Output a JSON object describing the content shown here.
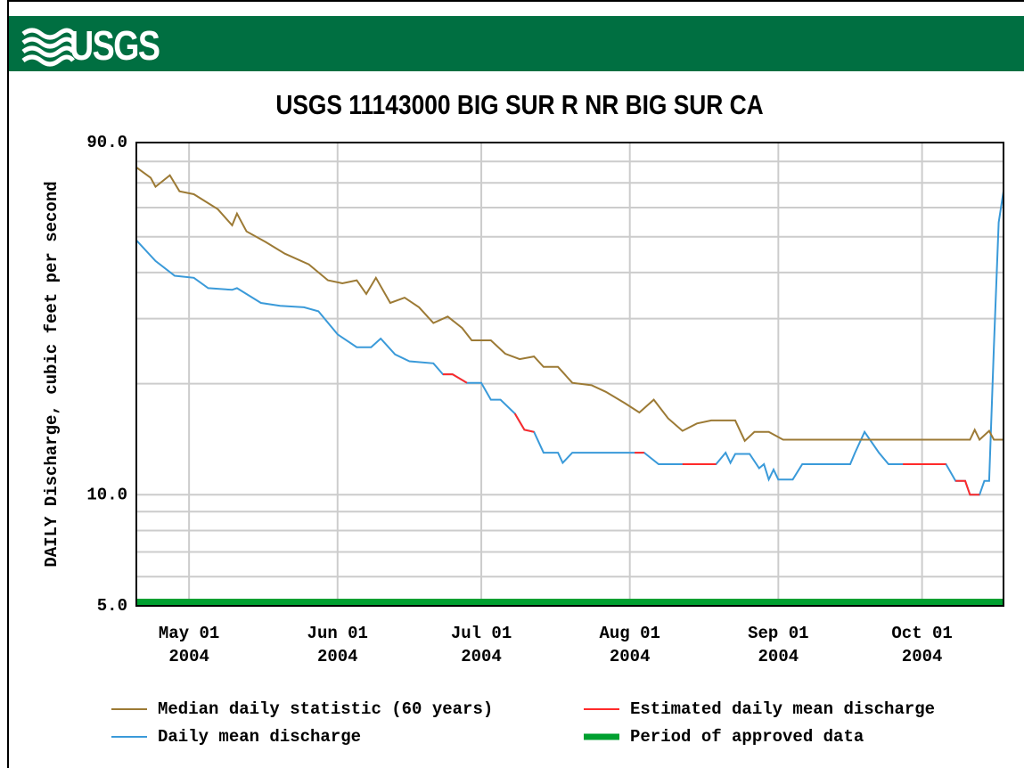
{
  "header": {
    "logo": "USGS"
  },
  "chart_data": {
    "type": "line",
    "title": "USGS 11143000 BIG SUR R NR BIG SUR CA",
    "y_label": "DAILY Discharge, cubic feet per second",
    "log_scale": true,
    "grid": true,
    "ylim": [
      5,
      90
    ],
    "yticks": [
      {
        "value": 5,
        "label": "5.0"
      },
      {
        "value": 10,
        "label": "10.0"
      },
      {
        "value": 90,
        "label": "90.0"
      }
    ],
    "minor_yticks": [
      6,
      7,
      8,
      9,
      20,
      30,
      40,
      50,
      60,
      70,
      80
    ],
    "xlim": [
      "2004-04-20",
      "2004-10-18"
    ],
    "xticks": [
      {
        "value": "2004-05-01",
        "label": "May 01\n2004"
      },
      {
        "value": "2004-06-01",
        "label": "Jun 01\n2004"
      },
      {
        "value": "2004-07-01",
        "label": "Jul 01\n2004"
      },
      {
        "value": "2004-08-01",
        "label": "Aug 01\n2004"
      },
      {
        "value": "2004-09-01",
        "label": "Sep 01\n2004"
      },
      {
        "value": "2004-10-01",
        "label": "Oct 01\n2004"
      }
    ],
    "series": [
      {
        "name": "Median daily statistic (60 years)",
        "color": "#9c7a35",
        "x": [
          "2004-04-20",
          "2004-04-23",
          "2004-04-24",
          "2004-04-27",
          "2004-04-29",
          "2004-05-02",
          "2004-05-07",
          "2004-05-10",
          "2004-05-11",
          "2004-05-13",
          "2004-05-17",
          "2004-05-21",
          "2004-05-26",
          "2004-05-30",
          "2004-06-02",
          "2004-06-05",
          "2004-06-07",
          "2004-06-09",
          "2004-06-12",
          "2004-06-15",
          "2004-06-18",
          "2004-06-21",
          "2004-06-24",
          "2004-06-27",
          "2004-06-29",
          "2004-07-03",
          "2004-07-06",
          "2004-07-09",
          "2004-07-12",
          "2004-07-14",
          "2004-07-17",
          "2004-07-20",
          "2004-07-24",
          "2004-07-27",
          "2004-07-31",
          "2004-08-03",
          "2004-08-06",
          "2004-08-09",
          "2004-08-12",
          "2004-08-15",
          "2004-08-18",
          "2004-08-23",
          "2004-08-25",
          "2004-08-27",
          "2004-08-30",
          "2004-09-02",
          "2004-10-11",
          "2004-10-12",
          "2004-10-13",
          "2004-10-15",
          "2004-10-16",
          "2004-10-18"
        ],
        "values": [
          77.1,
          72.2,
          68.3,
          73.4,
          66.4,
          65.2,
          59.4,
          53.7,
          57.8,
          51.7,
          48.4,
          45.0,
          42.1,
          38.1,
          37.4,
          38.1,
          35.0,
          38.7,
          33.1,
          34.2,
          32.2,
          29.2,
          30.4,
          28.3,
          26.2,
          26.2,
          24.1,
          23.3,
          23.7,
          22.2,
          22.2,
          20.1,
          19.8,
          19.0,
          17.7,
          16.7,
          18.1,
          16.1,
          14.9,
          15.6,
          15.9,
          15.9,
          14.0,
          14.8,
          14.8,
          14.1,
          14.1,
          15.0,
          14.1,
          14.9,
          14.1,
          14.1
        ]
      },
      {
        "name": "Estimated daily mean discharge",
        "color": "#ff2a2a",
        "x": [
          "2004-06-23",
          "2004-06-25",
          "2004-06-28",
          "2004-07-01",
          "2004-07-08",
          "2004-07-10",
          "2004-07-12",
          "2004-07-20",
          "2004-08-02",
          "2004-08-04",
          "2004-08-07",
          "2004-08-12",
          "2004-08-19",
          "2004-09-01",
          "2004-09-27",
          "2004-10-06",
          "2004-10-07",
          "2004-10-08",
          "2004-10-10",
          "2004-10-11",
          "2004-10-13"
        ],
        "values": [
          21.2,
          21.2,
          20.1,
          null,
          16.6,
          15.0,
          14.8,
          null,
          13.0,
          13.0,
          null,
          12.1,
          12.1,
          null,
          12.1,
          12.1,
          null,
          10.9,
          10.9,
          10.0,
          10.0
        ]
      },
      {
        "name": "Daily mean discharge",
        "color": "#3a9ad9",
        "x": [
          "2004-04-20",
          "2004-04-24",
          "2004-04-28",
          "2004-05-02",
          "2004-05-05",
          "2004-05-10",
          "2004-05-11",
          "2004-05-16",
          "2004-05-20",
          "2004-05-25",
          "2004-05-28",
          "2004-06-01",
          "2004-06-05",
          "2004-06-08",
          "2004-06-10",
          "2004-06-13",
          "2004-06-16",
          "2004-06-21",
          "2004-06-23",
          "2004-06-25",
          "2004-06-28",
          "2004-07-01",
          "2004-07-03",
          "2004-07-05",
          "2004-07-08",
          "2004-07-10",
          "2004-07-12",
          "2004-07-14",
          "2004-07-17",
          "2004-07-18",
          "2004-07-20",
          "2004-08-04",
          "2004-08-07",
          "2004-08-19",
          "2004-08-21",
          "2004-08-22",
          "2004-08-23",
          "2004-08-26",
          "2004-08-28",
          "2004-08-29",
          "2004-08-30",
          "2004-08-31",
          "2004-09-01",
          "2004-09-04",
          "2004-09-06",
          "2004-09-16",
          "2004-09-17",
          "2004-09-19",
          "2004-09-22",
          "2004-09-24",
          "2004-10-06",
          "2004-10-08",
          "2004-10-10",
          "2004-10-11",
          "2004-10-13",
          "2004-10-14",
          "2004-10-15",
          "2004-10-16",
          "2004-10-17",
          "2004-10-18"
        ],
        "values": [
          48.9,
          43.0,
          39.2,
          38.7,
          36.3,
          35.9,
          36.3,
          33.1,
          32.5,
          32.2,
          31.4,
          27.2,
          25.1,
          25.1,
          26.5,
          24.0,
          23.0,
          22.7,
          21.2,
          21.2,
          20.1,
          20.1,
          18.1,
          18.1,
          16.6,
          15.0,
          14.8,
          13.0,
          13.0,
          12.2,
          13.0,
          13.0,
          12.1,
          12.1,
          13.0,
          12.2,
          12.9,
          12.9,
          11.8,
          12.1,
          11.0,
          11.7,
          11.0,
          11.0,
          12.1,
          12.1,
          13.0,
          14.8,
          13.0,
          12.1,
          12.1,
          10.9,
          10.9,
          10.0,
          10.0,
          10.9,
          10.9,
          25.1,
          54.7,
          66.4
        ]
      },
      {
        "name": "Period of approved data",
        "color": "#00a030",
        "x": [
          "2004-04-20",
          "2004-10-18"
        ]
      }
    ]
  }
}
